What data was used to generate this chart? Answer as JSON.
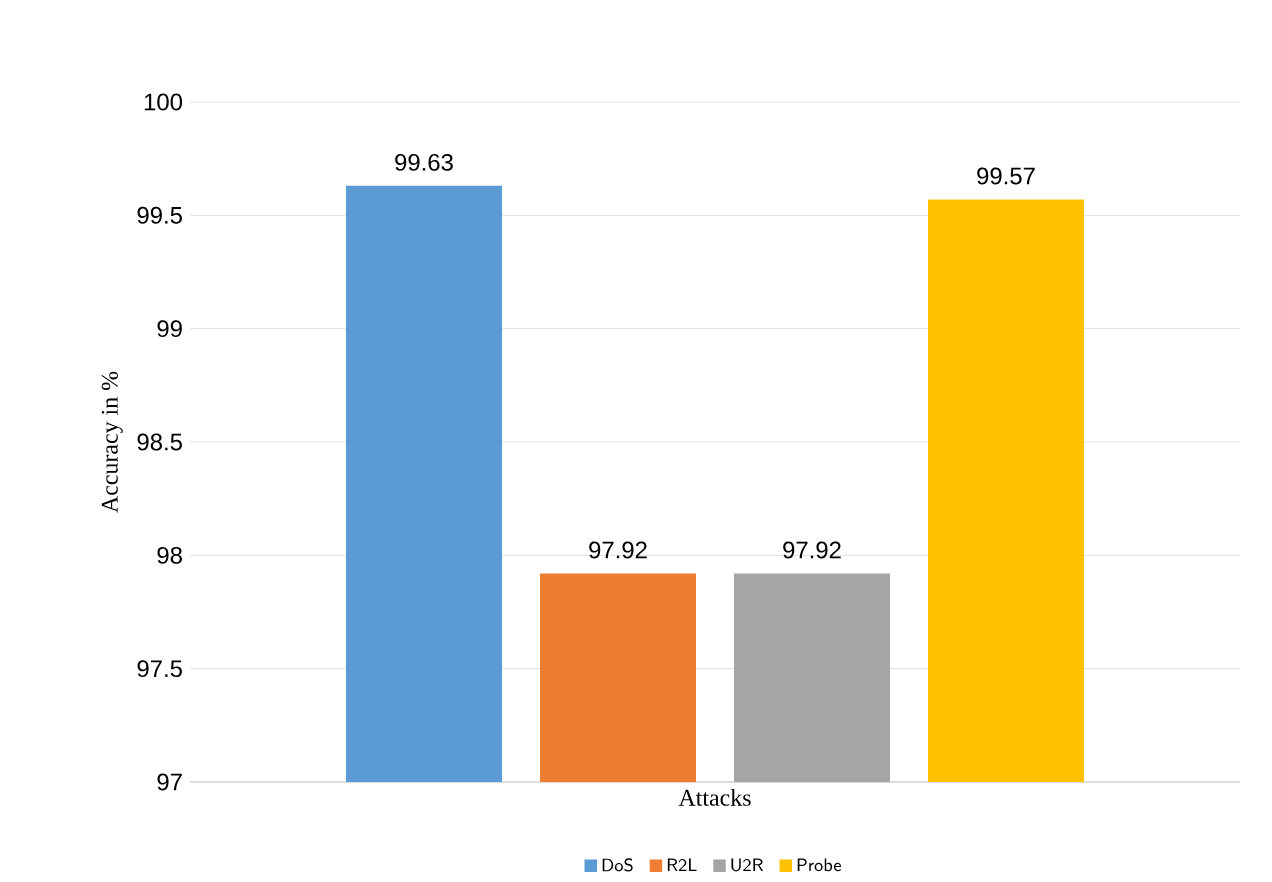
{
  "chart_data": {
    "type": "bar",
    "ylabel": "Accuracy in %",
    "categories": [
      "Attacks"
    ],
    "series": [
      {
        "name": "DoS",
        "color": "#5b9bd5",
        "values": [
          99.63
        ]
      },
      {
        "name": "R2L",
        "color": "#ed7d31",
        "values": [
          97.92
        ]
      },
      {
        "name": "U2R",
        "color": "#a5a5a5",
        "values": [
          97.92
        ]
      },
      {
        "name": "Probe",
        "color": "#ffc000",
        "values": [
          99.57
        ]
      }
    ],
    "ylim": [
      97,
      100
    ],
    "yticks": [
      97,
      97.5,
      98,
      98.5,
      99,
      99.5,
      100
    ],
    "grid": "y",
    "legend": "bottom",
    "data_labels": true
  }
}
